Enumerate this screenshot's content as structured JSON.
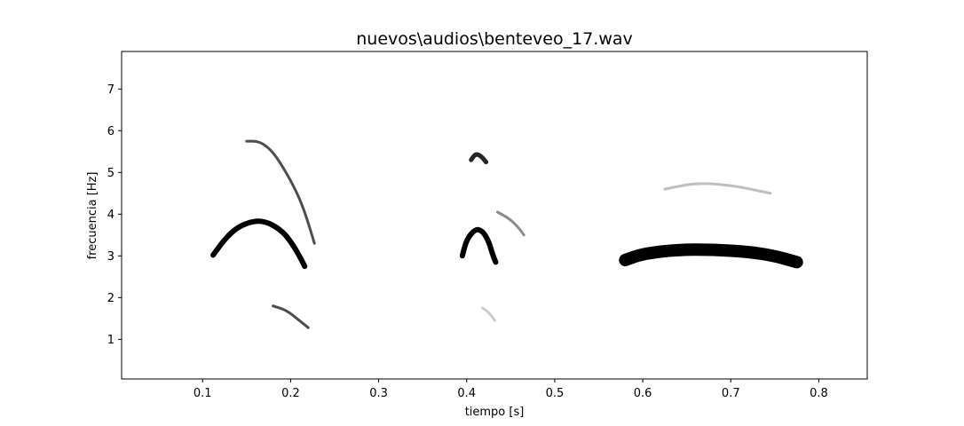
{
  "chart_data": {
    "type": "spectrogram",
    "title": "nuevos\\audios\\benteveo_17.wav",
    "xlabel": "tiempo [s]",
    "ylabel": "frecuencia [Hz]",
    "xlim": [
      0.008,
      0.855
    ],
    "ylim": [
      0.05,
      7.9
    ],
    "xticks": [
      0.1,
      0.2,
      0.3,
      0.4,
      0.5,
      0.6,
      0.7,
      0.8
    ],
    "yticks": [
      1,
      2,
      3,
      4,
      5,
      6,
      7
    ],
    "xtick_labels": [
      "0.1",
      "0.2",
      "0.3",
      "0.4",
      "0.5",
      "0.6",
      "0.7",
      "0.8"
    ],
    "ytick_labels": [
      "1",
      "2",
      "3",
      "4",
      "5",
      "6",
      "7"
    ],
    "grid": false,
    "colormap": "gray_r",
    "strokes": [
      {
        "name": "note1-main",
        "intensity": 1.0,
        "points": [
          [
            0.112,
            3.02
          ],
          [
            0.125,
            3.4
          ],
          [
            0.14,
            3.7
          ],
          [
            0.16,
            3.85
          ],
          [
            0.175,
            3.8
          ],
          [
            0.19,
            3.6
          ],
          [
            0.2,
            3.35
          ],
          [
            0.21,
            3.0
          ],
          [
            0.216,
            2.75
          ]
        ]
      },
      {
        "name": "note1-harmonic",
        "intensity": 0.7,
        "points": [
          [
            0.15,
            5.75
          ],
          [
            0.165,
            5.75
          ],
          [
            0.18,
            5.5
          ],
          [
            0.195,
            5.0
          ],
          [
            0.21,
            4.4
          ],
          [
            0.22,
            3.8
          ],
          [
            0.227,
            3.3
          ]
        ]
      },
      {
        "name": "note1-low",
        "intensity": 0.7,
        "points": [
          [
            0.18,
            1.8
          ],
          [
            0.195,
            1.7
          ],
          [
            0.21,
            1.45
          ],
          [
            0.22,
            1.28
          ]
        ]
      },
      {
        "name": "note2-main",
        "intensity": 1.0,
        "points": [
          [
            0.395,
            3.0
          ],
          [
            0.4,
            3.4
          ],
          [
            0.41,
            3.65
          ],
          [
            0.418,
            3.6
          ],
          [
            0.425,
            3.35
          ],
          [
            0.43,
            3.0
          ],
          [
            0.433,
            2.85
          ]
        ]
      },
      {
        "name": "note2-harmonic",
        "intensity": 0.85,
        "points": [
          [
            0.405,
            5.3
          ],
          [
            0.41,
            5.45
          ],
          [
            0.416,
            5.4
          ],
          [
            0.422,
            5.25
          ]
        ]
      },
      {
        "name": "note2-side",
        "intensity": 0.45,
        "points": [
          [
            0.435,
            4.05
          ],
          [
            0.448,
            3.9
          ],
          [
            0.458,
            3.7
          ],
          [
            0.465,
            3.5
          ]
        ]
      },
      {
        "name": "note2-faint",
        "intensity": 0.2,
        "points": [
          [
            0.418,
            1.75
          ],
          [
            0.425,
            1.65
          ],
          [
            0.432,
            1.45
          ]
        ]
      },
      {
        "name": "note3-main",
        "intensity": 1.0,
        "points": [
          [
            0.58,
            2.9
          ],
          [
            0.6,
            3.05
          ],
          [
            0.64,
            3.15
          ],
          [
            0.68,
            3.15
          ],
          [
            0.72,
            3.1
          ],
          [
            0.75,
            3.0
          ],
          [
            0.775,
            2.85
          ]
        ]
      },
      {
        "name": "note3-harmonic",
        "intensity": 0.25,
        "points": [
          [
            0.625,
            4.6
          ],
          [
            0.66,
            4.75
          ],
          [
            0.7,
            4.7
          ],
          [
            0.745,
            4.5
          ]
        ]
      }
    ]
  }
}
